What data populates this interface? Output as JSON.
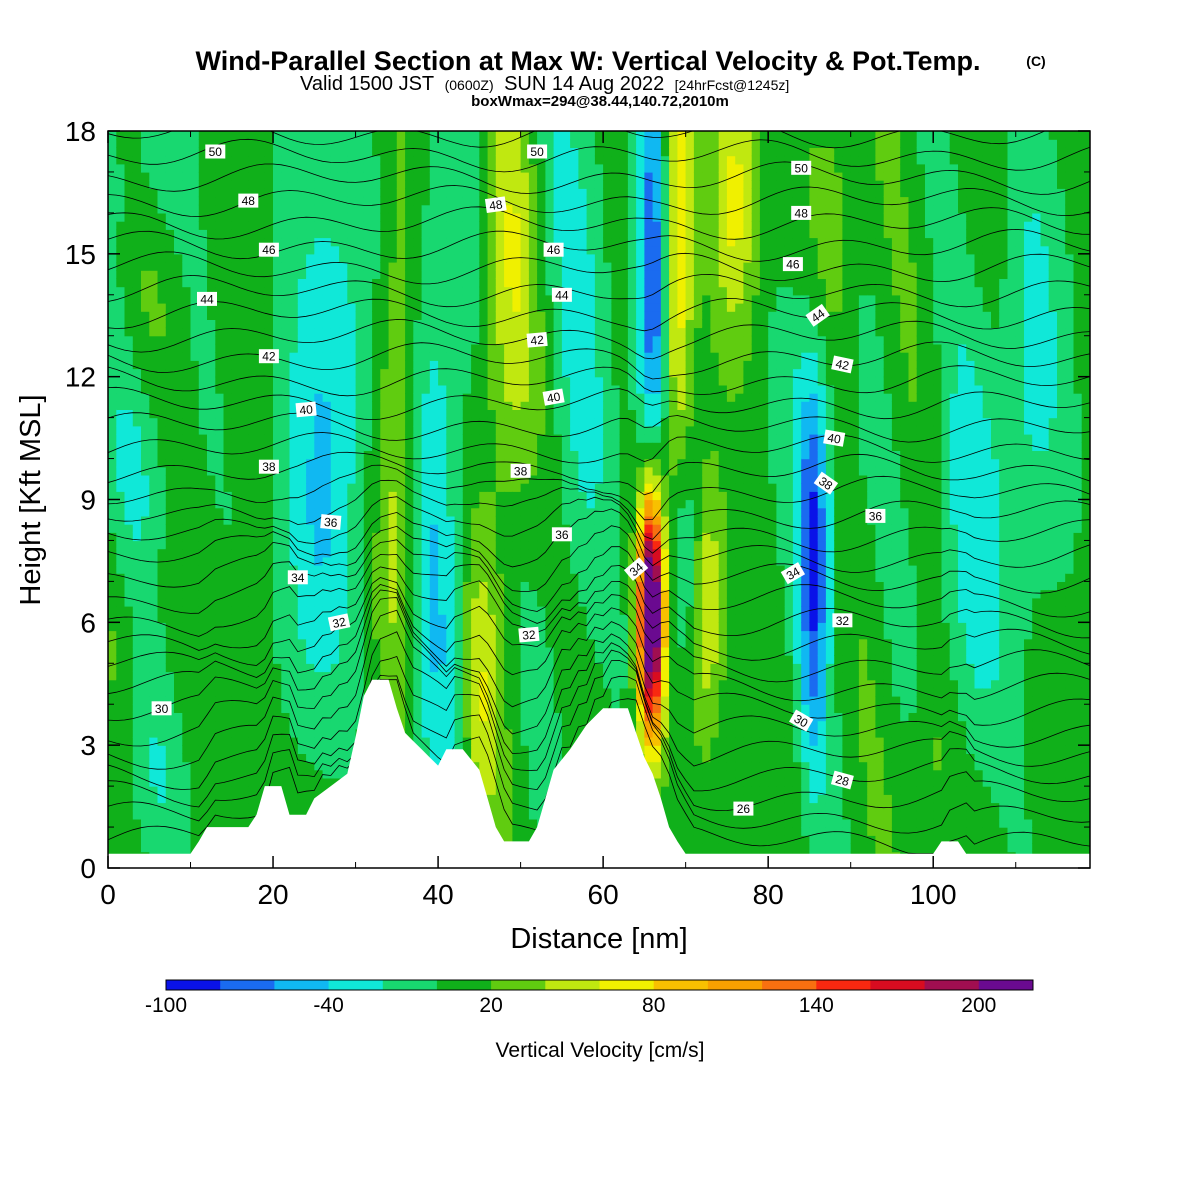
{
  "header": {
    "title": "Wind-Parallel Section at Max W: Vertical Velocity & Pot.Temp.",
    "title_mark": "(C)",
    "valid_prefix": "Valid 1500 JST",
    "valid_utc": "(0600Z)",
    "valid_date": "SUN 14 Aug 2022",
    "forecast": "[24hrFcst@1245z]",
    "box_info": "boxWmax=294@38.44,140.72,2010m"
  },
  "chart_data": {
    "type": "heatmap",
    "xlabel": "Distance [nm]",
    "ylabel": "Height [Kft MSL]",
    "xlim": [
      0,
      119
    ],
    "ylim": [
      0,
      18
    ],
    "x_ticks": [
      0,
      20,
      40,
      60,
      80,
      100
    ],
    "y_ticks": [
      0,
      3,
      6,
      9,
      12,
      15,
      18
    ],
    "x_tick_labels": [
      "0",
      "20",
      "40",
      "60",
      "80",
      "100"
    ],
    "y_tick_labels": [
      "0",
      "3",
      "6",
      "9",
      "12",
      "15",
      "18"
    ],
    "colorbar": {
      "title": "Vertical Velocity [cm/s]",
      "bounds": [
        -100,
        220
      ],
      "colors": [
        "#0a12e8",
        "#1a6bf0",
        "#10b8f2",
        "#10e8d8",
        "#18d870",
        "#10b01a",
        "#60cc10",
        "#c0e810",
        "#f0f000",
        "#f8c000",
        "#f8a000",
        "#f87010",
        "#f82810",
        "#d80c20",
        "#a00e50",
        "#6a0a90"
      ],
      "labels": [
        "-100",
        "-40",
        "20",
        "80",
        "140",
        "200"
      ],
      "label_values": [
        -100,
        -40,
        20,
        80,
        140,
        200
      ]
    },
    "terrain_kft": [
      [
        0,
        0.35
      ],
      [
        10,
        0.35
      ],
      [
        11,
        0.65
      ],
      [
        12,
        1.0
      ],
      [
        17,
        1.0
      ],
      [
        18,
        1.3
      ],
      [
        19,
        2.0
      ],
      [
        21,
        2.0
      ],
      [
        22,
        1.3
      ],
      [
        24,
        1.3
      ],
      [
        25,
        1.7
      ],
      [
        27,
        2.0
      ],
      [
        29,
        2.3
      ],
      [
        30,
        3.2
      ],
      [
        31,
        4.2
      ],
      [
        32,
        4.6
      ],
      [
        34,
        4.6
      ],
      [
        35,
        3.9
      ],
      [
        36,
        3.3
      ],
      [
        37,
        3.1
      ],
      [
        38,
        2.9
      ],
      [
        39,
        2.7
      ],
      [
        40,
        2.5
      ],
      [
        41,
        2.9
      ],
      [
        43,
        2.9
      ],
      [
        45,
        2.4
      ],
      [
        46,
        1.7
      ],
      [
        47,
        1.0
      ],
      [
        48,
        0.65
      ],
      [
        51,
        0.65
      ],
      [
        52,
        1.0
      ],
      [
        53,
        1.7
      ],
      [
        54,
        2.4
      ],
      [
        56,
        2.9
      ],
      [
        58,
        3.5
      ],
      [
        60,
        3.9
      ],
      [
        63,
        3.9
      ],
      [
        64,
        3.3
      ],
      [
        65,
        2.7
      ],
      [
        66,
        2.3
      ],
      [
        67,
        1.7
      ],
      [
        68,
        1.0
      ],
      [
        69,
        0.65
      ],
      [
        70,
        0.35
      ],
      [
        100,
        0.35
      ],
      [
        101,
        0.65
      ],
      [
        103,
        0.65
      ],
      [
        104,
        0.35
      ],
      [
        119,
        0.35
      ]
    ],
    "theta_contour_labels": [
      {
        "text": "50",
        "x": 13,
        "y": 17.5,
        "angle": 0
      },
      {
        "text": "50",
        "x": 52,
        "y": 17.5,
        "angle": 0
      },
      {
        "text": "50",
        "x": 84,
        "y": 17.1,
        "angle": 0
      },
      {
        "text": "48",
        "x": 17,
        "y": 16.3,
        "angle": 0
      },
      {
        "text": "48",
        "x": 47,
        "y": 16.2,
        "angle": -8
      },
      {
        "text": "48",
        "x": 84,
        "y": 16.0,
        "angle": 0
      },
      {
        "text": "46",
        "x": 19.5,
        "y": 15.1,
        "angle": 0
      },
      {
        "text": "46",
        "x": 54,
        "y": 15.1,
        "angle": 0
      },
      {
        "text": "46",
        "x": 83,
        "y": 14.75,
        "angle": 0
      },
      {
        "text": "44",
        "x": 12,
        "y": 13.9,
        "angle": 0
      },
      {
        "text": "44",
        "x": 55,
        "y": 14.0,
        "angle": 0
      },
      {
        "text": "44",
        "x": 86,
        "y": 13.5,
        "angle": -35
      },
      {
        "text": "42",
        "x": 19.5,
        "y": 12.5,
        "angle": 0
      },
      {
        "text": "42",
        "x": 52,
        "y": 12.9,
        "angle": -5
      },
      {
        "text": "42",
        "x": 89,
        "y": 12.3,
        "angle": 12
      },
      {
        "text": "40",
        "x": 24,
        "y": 11.2,
        "angle": -5
      },
      {
        "text": "40",
        "x": 54,
        "y": 11.5,
        "angle": -10
      },
      {
        "text": "40",
        "x": 88,
        "y": 10.5,
        "angle": 10
      },
      {
        "text": "38",
        "x": 19.5,
        "y": 9.8,
        "angle": 0
      },
      {
        "text": "38",
        "x": 50,
        "y": 9.7,
        "angle": 0
      },
      {
        "text": "38",
        "x": 87,
        "y": 9.4,
        "angle": 35
      },
      {
        "text": "36",
        "x": 27,
        "y": 8.45,
        "angle": 5
      },
      {
        "text": "36",
        "x": 55,
        "y": 8.15,
        "angle": 0
      },
      {
        "text": "36",
        "x": 93,
        "y": 8.6,
        "angle": 0
      },
      {
        "text": "34",
        "x": 23,
        "y": 7.1,
        "angle": 0
      },
      {
        "text": "34",
        "x": 64,
        "y": 7.3,
        "angle": -40
      },
      {
        "text": "34",
        "x": 83,
        "y": 7.2,
        "angle": -30
      },
      {
        "text": "32",
        "x": 28,
        "y": 6.0,
        "angle": -12
      },
      {
        "text": "32",
        "x": 51,
        "y": 5.7,
        "angle": -5
      },
      {
        "text": "32",
        "x": 89,
        "y": 6.05,
        "angle": 0
      },
      {
        "text": "30",
        "x": 6.5,
        "y": 3.9,
        "angle": 0
      },
      {
        "text": "30",
        "x": 84,
        "y": 3.6,
        "angle": 30
      },
      {
        "text": "28",
        "x": 89,
        "y": 2.15,
        "angle": 15
      },
      {
        "text": "26",
        "x": 77,
        "y": 1.45,
        "angle": 0
      }
    ],
    "grid": false
  },
  "colors": {
    "background": "#ffffff",
    "frame": "#000000",
    "contour": "#000000"
  }
}
